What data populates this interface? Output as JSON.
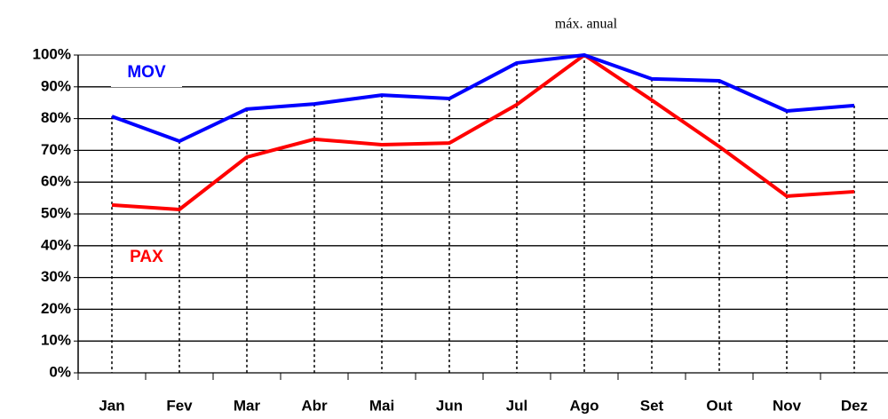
{
  "chart_data": {
    "type": "line",
    "annotation": "máx. anual",
    "categories": [
      "Jan",
      "Fev",
      "Mar",
      "Abr",
      "Mai",
      "Jun",
      "Jul",
      "Ago",
      "Set",
      "Out",
      "Nov",
      "Dez"
    ],
    "series": [
      {
        "name": "MOV",
        "color": "#0000ff",
        "values": [
          80.7,
          72.9,
          83,
          84.6,
          87.4,
          86.3,
          97.5,
          100,
          92.5,
          91.9,
          82.4,
          84.1
        ]
      },
      {
        "name": "PAX",
        "color": "#ff0000",
        "values": [
          52.8,
          51.4,
          67.9,
          73.5,
          71.8,
          72.3,
          84.4,
          100,
          85.8,
          71.2,
          55.6,
          57
        ]
      }
    ],
    "ylim": [
      0,
      100
    ],
    "yticks": [
      {
        "value": 0,
        "label": "0%"
      },
      {
        "value": 10,
        "label": "10%"
      },
      {
        "value": 20,
        "label": "20%"
      },
      {
        "value": 30,
        "label": "30%"
      },
      {
        "value": 40,
        "label": "40%"
      },
      {
        "value": 50,
        "label": "50%"
      },
      {
        "value": 60,
        "label": "60%"
      },
      {
        "value": 70,
        "label": "70%"
      },
      {
        "value": 80,
        "label": "80%"
      },
      {
        "value": 90,
        "label": "90%"
      },
      {
        "value": 100,
        "label": "100%"
      }
    ],
    "grid": true
  }
}
